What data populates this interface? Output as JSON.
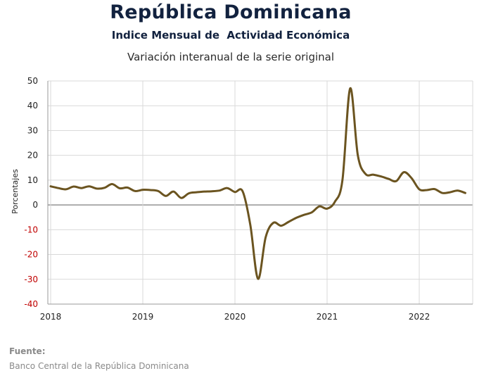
{
  "header": {
    "title": "República Dominicana",
    "subtitle": "Indice Mensual de  Actividad Económica",
    "description": "Variación interanual de la serie original"
  },
  "source": {
    "label": "Fuente:",
    "text": "Banco Central de la República Dominicana"
  },
  "colors": {
    "line": "#6b5420",
    "title": "#12223f",
    "negative_tick": "#c00000",
    "grid": "#d9d9d9",
    "zero_line": "#7f7f7f"
  },
  "chart_data": {
    "type": "line",
    "ylabel": "Porcentajes",
    "ylim": [
      -40,
      50
    ],
    "yticks": [
      -40,
      -30,
      -20,
      -10,
      0,
      10,
      20,
      30,
      40,
      50
    ],
    "xticks": [
      "2018",
      "2019",
      "2020",
      "2021",
      "2022"
    ],
    "xlim": [
      "2018-01",
      "2022-07"
    ],
    "grid": true,
    "series": [
      {
        "x": [
          "2018-01",
          "2018-02",
          "2018-03",
          "2018-04",
          "2018-05",
          "2018-06",
          "2018-07",
          "2018-08",
          "2018-09",
          "2018-10",
          "2018-11",
          "2018-12",
          "2019-01",
          "2019-02",
          "2019-03",
          "2019-04",
          "2019-05",
          "2019-06",
          "2019-07",
          "2019-08",
          "2019-09",
          "2019-10",
          "2019-11",
          "2019-12",
          "2020-01",
          "2020-02",
          "2020-03",
          "2020-04",
          "2020-05",
          "2020-06",
          "2020-07",
          "2020-08",
          "2020-09",
          "2020-10",
          "2020-11",
          "2020-12",
          "2021-01",
          "2021-02",
          "2021-03",
          "2021-04",
          "2021-05",
          "2021-06",
          "2021-07",
          "2021-08",
          "2021-09",
          "2021-10",
          "2021-11",
          "2021-12",
          "2022-01",
          "2022-02",
          "2022-03",
          "2022-04",
          "2022-05",
          "2022-06",
          "2022-07"
        ],
        "values": [
          7.5,
          6.8,
          6.3,
          7.4,
          6.8,
          7.5,
          6.6,
          6.9,
          8.4,
          6.7,
          7.0,
          5.6,
          6.1,
          6.0,
          5.6,
          3.6,
          5.4,
          2.8,
          4.7,
          5.1,
          5.4,
          5.5,
          5.8,
          6.8,
          5.2,
          5.5,
          -8.0,
          -29.8,
          -13.0,
          -7.2,
          -8.4,
          -6.8,
          -5.2,
          -4.0,
          -3.0,
          -0.6,
          -1.5,
          1.2,
          10.0,
          47.0,
          20.0,
          12.5,
          12.2,
          11.5,
          10.5,
          9.6,
          13.2,
          10.8,
          6.3,
          6.0,
          6.4,
          4.8,
          5.1,
          5.8,
          4.8
        ]
      }
    ]
  }
}
